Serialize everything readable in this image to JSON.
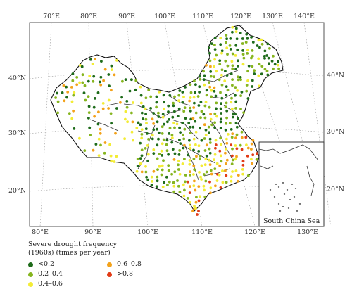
{
  "lon_labels_top": [
    "70°E",
    "80°E",
    "90°E",
    "100°E",
    "110°E",
    "120°E",
    "130°E",
    "140°E"
  ],
  "lon_labels_bottom": [
    "80°E",
    "90°E",
    "100°E",
    "110°E",
    "120°E",
    "130°E"
  ],
  "lat_labels": [
    "40°N",
    "30°N",
    "20°N"
  ],
  "inset_label": "South China Sea",
  "legend": {
    "title_line1": "Severe drought frequency",
    "title_line2": "(1960s) (times per year)",
    "classes": [
      {
        "label": "<0.2",
        "color": "#1e6b1a"
      },
      {
        "label": "0.2–0.4",
        "color": "#86b51f"
      },
      {
        "label": "0.4–0.6",
        "color": "#f3ec35"
      },
      {
        "label": "0.6–0.8",
        "color": "#f3a21b"
      },
      {
        "label": ">0.8",
        "color": "#e23b16"
      }
    ]
  }
}
